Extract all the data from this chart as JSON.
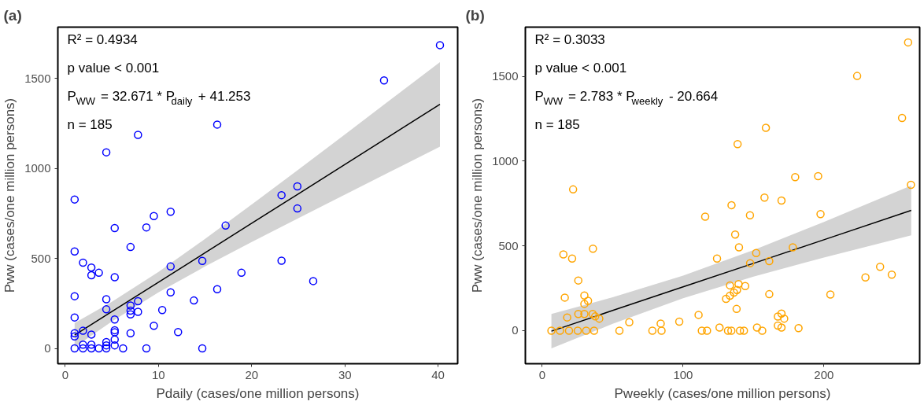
{
  "chart_data": [
    {
      "type": "scatter",
      "title": "(a)",
      "xlabel": "Pdaily (cases/one million persons)",
      "ylabel": "Pww (cases/one million persons)",
      "xlim": [
        -0.8,
        42.1
      ],
      "ylim": [
        -85,
        1784
      ],
      "xticks": [
        0,
        10,
        20,
        30,
        40
      ],
      "yticks": [
        0,
        500,
        1000,
        1500
      ],
      "grid": false,
      "marker": "circle",
      "annotations": [
        "R² = 0.4934",
        "p value < 0.001",
        "P$_{WW}$ = 32.671 * P$_{daily}$ + 41.253",
        "n = 185"
      ],
      "series": [
        {
          "type": "line",
          "marker": "none",
          "color": "#000000",
          "x": [
            1,
            5,
            10,
            15,
            20,
            25,
            30,
            35,
            40.2
          ],
          "values": [
            74,
            205,
            368,
            531,
            695,
            858,
            1021,
            1185,
            1355
          ],
          "lower": [
            7,
            150,
            311,
            455,
            591,
            723,
            854,
            985,
            1120
          ],
          "upper": [
            141,
            259,
            425,
            608,
            799,
            993,
            1188,
            1385,
            1590
          ]
        },
        {
          "color": "#0000ff",
          "x": [
            1,
            1,
            1,
            1,
            1,
            1,
            1,
            1.9,
            1.9,
            1.9,
            1.9,
            2.8,
            2.8,
            2.8,
            2.8,
            2.8,
            3.6,
            3.6,
            4.4,
            4.4,
            4.4,
            4.4,
            4.4,
            4.4,
            5.3,
            5.3,
            5.3,
            5.3,
            5.3,
            5.3,
            5.3,
            6.2,
            7.0,
            7.0,
            7.0,
            7.0,
            7.0,
            7.8,
            7.8,
            7.8,
            8.7,
            8.7,
            9.5,
            9.5,
            10.4,
            11.3,
            11.3,
            11.3,
            12.1,
            13.8,
            14.7,
            14.7,
            16.3,
            16.3,
            17.2,
            18.9,
            23.2,
            23.2,
            24.9,
            24.9,
            26.6,
            34.2,
            40.2
          ],
          "values": [
            827,
            538,
            290,
            172,
            84,
            67,
            0,
            98,
            476,
            21,
            0,
            449,
            406,
            77,
            21,
            0,
            420,
            0,
            1089,
            273,
            217,
            35,
            17,
            0,
            668,
            395,
            161,
            101,
            90,
            49,
            17,
            0,
            563,
            238,
            210,
            189,
            84,
            1186,
            262,
            203,
            672,
            0,
            735,
            126,
            213,
            759,
            455,
            311,
            91,
            266,
            486,
            0,
            1243,
            329,
            682,
            420,
            487,
            851,
            900,
            777,
            374,
            1488,
            1684
          ]
        }
      ]
    },
    {
      "type": "scatter",
      "title": "(b)",
      "xlabel": "Pweekly (cases/one million persons)",
      "ylabel": "Pww (cases/one million persons)",
      "xlim": [
        -12,
        268
      ],
      "ylim": [
        -195,
        1790
      ],
      "xticks": [
        0,
        100,
        200
      ],
      "yticks": [
        0,
        500,
        1000,
        1500
      ],
      "grid": false,
      "marker": "circle",
      "annotations": [
        "R² = 0.3033",
        "p value < 0.001",
        "P$_{WW}$ = 2.783 * P$_{weekly}$ - 20.664",
        "n = 185"
      ],
      "series": [
        {
          "type": "line",
          "marker": "none",
          "color": "#000000",
          "x": [
            6.5,
            50,
            100,
            150,
            200,
            262
          ],
          "values": [
            -3,
            119,
            258,
            397,
            536,
            709
          ],
          "lower": [
            -104,
            40,
            191,
            319,
            431,
            562
          ],
          "upper": [
            98,
            197,
            324,
            475,
            641,
            856
          ]
        },
        {
          "color": "#ffa500",
          "x": [
            6.5,
            12.6,
            19,
            25.2,
            31.2,
            36.8,
            21.9,
            15,
            21.2,
            36,
            25.6,
            16,
            29.9,
            32.5,
            29.9,
            25.6,
            29.9,
            35.8,
            37.6,
            17.7,
            40.5,
            54.8,
            61.8,
            78.2,
            84.1,
            84.7,
            97.3,
            111,
            115.7,
            113.3,
            117,
            125.9,
            131.9,
            134.3,
            140.4,
            143.2,
            152.5,
            156.2,
            167.3,
            169.9,
            171.8,
            167.3,
            169.9,
            182,
            124.1,
            133.3,
            139.4,
            144.1,
            130.5,
            133.3,
            136.1,
            138.3,
            138,
            147.6,
            151.9,
            161.2,
            161.2,
            137,
            139.7,
            134.4,
            147.5,
            157.8,
            169.9,
            138.7,
            158.8,
            177.9,
            179.6,
            195.9,
            197.6,
            204.6,
            229.5,
            239.9,
            248.2,
            223.6,
            255.5,
            259.8,
            261.8
          ],
          "values": [
            0,
            0,
            0,
            0,
            0,
            0,
            833,
            450,
            425,
            483,
            296,
            195,
            207,
            176,
            158,
            98,
            98,
            98,
            84,
            78,
            71,
            0,
            50,
            0,
            42,
            0,
            53,
            93,
            672,
            0,
            0,
            18,
            0,
            0,
            0,
            0,
            18,
            0,
            83,
            101,
            71,
            30,
            18,
            15,
            425,
            267,
            275,
            263,
            188,
            206,
            225,
            240,
            128,
            398,
            458,
            410,
            215,
            567,
            491,
            740,
            680,
            785,
            767,
            1100,
            1196,
            491,
            905,
            911,
            687,
            213,
            314,
            377,
            330,
            1502,
            1254,
            1700,
            860
          ]
        }
      ]
    }
  ]
}
